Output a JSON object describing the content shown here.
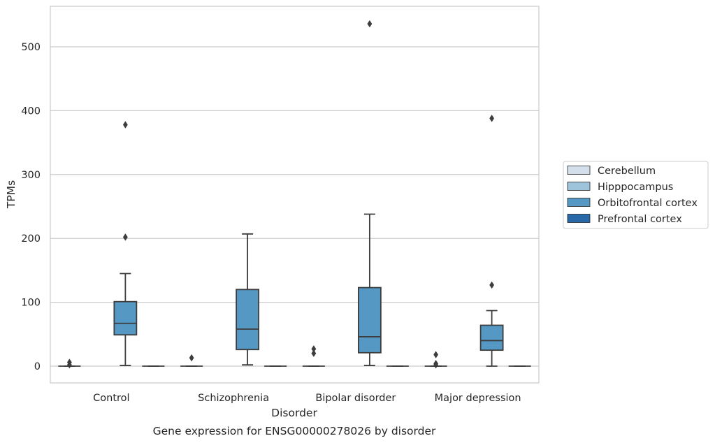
{
  "chart_data": {
    "type": "box",
    "title": "",
    "caption": "Gene expression for ENSG00000278026 by disorder",
    "xlabel": "Disorder",
    "ylabel": "TPMs",
    "ylim": [
      -26,
      565
    ],
    "yticks": [
      0,
      100,
      200,
      300,
      400,
      500
    ],
    "grid": "horizontal",
    "legend_position": "right",
    "categories": [
      "Control",
      "Schizophrenia",
      "Bipolar disorder",
      "Major depression"
    ],
    "series": [
      {
        "name": "Cerebellum",
        "color": "#d3e0ec",
        "boxes": [
          {
            "q1": 0,
            "median": 0,
            "q3": 0,
            "whisker_low": 0,
            "whisker_high": 0,
            "outliers": [
              6,
              2
            ]
          },
          {
            "q1": 0,
            "median": 0,
            "q3": 0,
            "whisker_low": 0,
            "whisker_high": 0,
            "outliers": [
              13
            ]
          },
          {
            "q1": 0,
            "median": 0,
            "q3": 0,
            "whisker_low": 0,
            "whisker_high": 0,
            "outliers": [
              27,
              20
            ]
          },
          {
            "q1": 0,
            "median": 0,
            "q3": 0,
            "whisker_low": 0,
            "whisker_high": 0,
            "outliers": [
              18,
              4,
              2
            ]
          }
        ]
      },
      {
        "name": "Hipppocampus",
        "color": "#9ec4dc",
        "boxes": [
          null,
          null,
          null,
          null
        ]
      },
      {
        "name": "Orbitofrontal cortex",
        "color": "#5598c4",
        "boxes": [
          {
            "q1": 49,
            "median": 67,
            "q3": 101,
            "whisker_low": 1,
            "whisker_high": 145,
            "outliers": [
              378,
              202
            ]
          },
          {
            "q1": 26,
            "median": 58,
            "q3": 120,
            "whisker_low": 2,
            "whisker_high": 207,
            "outliers": []
          },
          {
            "q1": 21,
            "median": 46,
            "q3": 123,
            "whisker_low": 1,
            "whisker_high": 238,
            "outliers": [
              536
            ]
          },
          {
            "q1": 25,
            "median": 40,
            "q3": 64,
            "whisker_low": 0,
            "whisker_high": 87,
            "outliers": [
              388,
              127
            ]
          }
        ]
      },
      {
        "name": "Prefrontal cortex",
        "color": "#2a69a8",
        "boxes": [
          {
            "q1": 0,
            "median": 0,
            "q3": 0,
            "whisker_low": 0,
            "whisker_high": 0,
            "outliers": []
          },
          {
            "q1": 0,
            "median": 0,
            "q3": 0,
            "whisker_low": 0,
            "whisker_high": 0,
            "outliers": []
          },
          {
            "q1": 0,
            "median": 0,
            "q3": 0,
            "whisker_low": 0,
            "whisker_high": 0,
            "outliers": []
          },
          {
            "q1": 0,
            "median": 0,
            "q3": 0,
            "whisker_low": 0,
            "whisker_high": 0,
            "outliers": []
          }
        ]
      }
    ]
  }
}
